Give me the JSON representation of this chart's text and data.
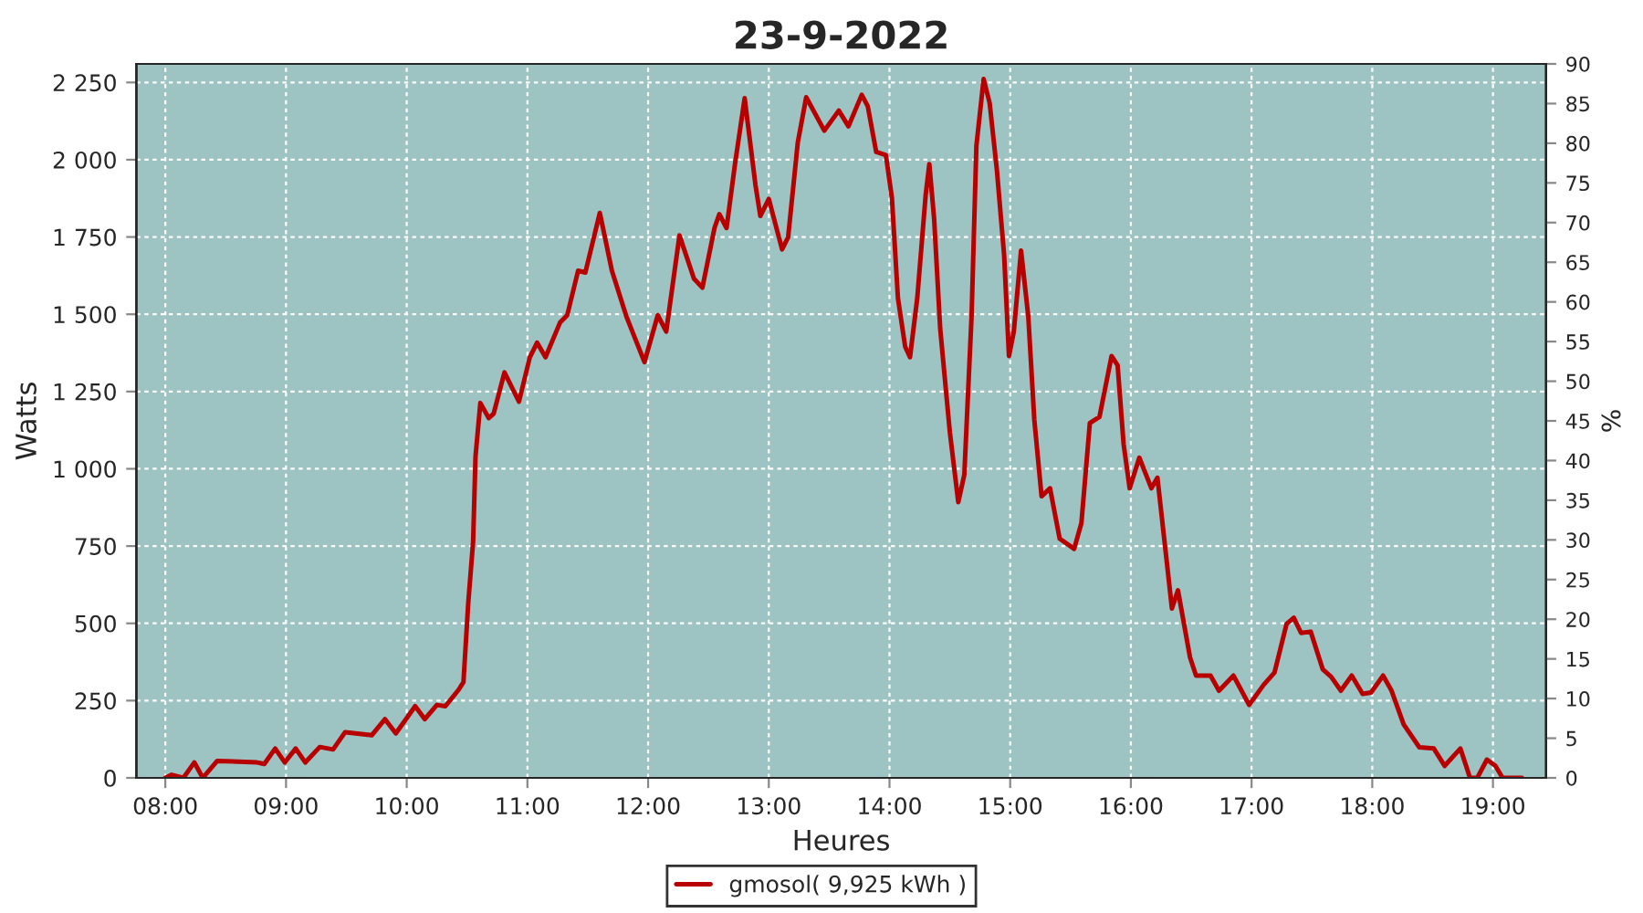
{
  "chart_data": {
    "type": "line",
    "title": "23-9-2022",
    "xlabel": "Heures",
    "ylabel": "Watts",
    "y2label": "%",
    "x": [
      8.0,
      8.05,
      8.15,
      8.24,
      8.31,
      8.43,
      8.76,
      8.82,
      8.91,
      8.99,
      9.08,
      9.16,
      9.28,
      9.39,
      9.49,
      9.71,
      9.82,
      9.91,
      10.07,
      10.15,
      10.25,
      10.32,
      10.43,
      10.47,
      10.51,
      10.55,
      10.57,
      10.61,
      10.68,
      10.72,
      10.81,
      10.93,
      11.02,
      11.08,
      11.15,
      11.27,
      11.33,
      11.42,
      11.48,
      11.6,
      11.7,
      11.82,
      11.97,
      12.08,
      12.15,
      12.26,
      12.38,
      12.45,
      12.55,
      12.59,
      12.65,
      12.72,
      12.8,
      12.89,
      12.93,
      13.0,
      13.11,
      13.16,
      13.24,
      13.31,
      13.46,
      13.58,
      13.66,
      13.77,
      13.82,
      13.89,
      13.97,
      14.02,
      14.07,
      14.13,
      14.17,
      14.23,
      14.3,
      14.33,
      14.37,
      14.42,
      14.5,
      14.57,
      14.62,
      14.68,
      14.72,
      14.78,
      14.83,
      14.89,
      14.95,
      14.99,
      15.03,
      15.09,
      15.15,
      15.2,
      15.26,
      15.33,
      15.41,
      15.53,
      15.59,
      15.66,
      15.74,
      15.84,
      15.89,
      15.94,
      15.99,
      16.07,
      16.17,
      16.22,
      16.29,
      16.34,
      16.39,
      16.49,
      16.54,
      16.66,
      16.73,
      16.85,
      16.98,
      17.1,
      17.19,
      17.29,
      17.35,
      17.41,
      17.49,
      17.59,
      17.66,
      17.74,
      17.83,
      17.92,
      17.99,
      18.09,
      18.16,
      18.26,
      18.39,
      18.51,
      18.6,
      18.73,
      18.81,
      18.87,
      18.95,
      19.02,
      19.08,
      19.24
    ],
    "series": [
      {
        "name": "gmosol( 9,925 kWh )",
        "color": "#b80000",
        "values": [
          0,
          10,
          0,
          50,
          0,
          55,
          50,
          45,
          95,
          50,
          95,
          50,
          100,
          92,
          148,
          138,
          190,
          144,
          232,
          190,
          236,
          232,
          285,
          310,
          567,
          764,
          1040,
          1213,
          1164,
          1178,
          1312,
          1217,
          1361,
          1408,
          1361,
          1473,
          1497,
          1641,
          1635,
          1828,
          1641,
          1493,
          1345,
          1497,
          1444,
          1755,
          1615,
          1586,
          1779,
          1824,
          1779,
          1986,
          2199,
          1917,
          1818,
          1873,
          1710,
          1749,
          2055,
          2202,
          2094,
          2159,
          2108,
          2210,
          2173,
          2025,
          2015,
          1877,
          1552,
          1395,
          1361,
          1552,
          1887,
          1986,
          1808,
          1454,
          1119,
          892,
          981,
          1493,
          2045,
          2261,
          2183,
          1966,
          1690,
          1365,
          1444,
          1706,
          1493,
          1158,
          911,
          937,
          774,
          741,
          824,
          1148,
          1168,
          1365,
          1335,
          1079,
          937,
          1036,
          937,
          971,
          725,
          548,
          607,
          390,
          331,
          331,
          282,
          331,
          236,
          301,
          341,
          498,
          518,
          469,
          473,
          351,
          327,
          282,
          331,
          272,
          276,
          331,
          282,
          173,
          99,
          95,
          39,
          95,
          0,
          0,
          59,
          39,
          0,
          0
        ]
      }
    ],
    "xlim": [
      7.76,
      19.44
    ],
    "xticks": [
      {
        "value": 8,
        "label": "08:00"
      },
      {
        "value": 9,
        "label": "09:00"
      },
      {
        "value": 10,
        "label": "10:00"
      },
      {
        "value": 11,
        "label": "11:00"
      },
      {
        "value": 12,
        "label": "12:00"
      },
      {
        "value": 13,
        "label": "13:00"
      },
      {
        "value": 14,
        "label": "14:00"
      },
      {
        "value": 15,
        "label": "15:00"
      },
      {
        "value": 16,
        "label": "16:00"
      },
      {
        "value": 17,
        "label": "17:00"
      },
      {
        "value": 18,
        "label": "18:00"
      },
      {
        "value": 19,
        "label": "19:00"
      }
    ],
    "ylim": [
      0,
      2310
    ],
    "yticks": [
      0,
      250,
      500,
      750,
      {
        "value": 1000,
        "label": "1 000"
      },
      {
        "value": 1250,
        "label": "1 250"
      },
      {
        "value": 1500,
        "label": "1 500"
      },
      {
        "value": 1750,
        "label": "1 750"
      },
      {
        "value": 2000,
        "label": "2 000"
      },
      {
        "value": 2250,
        "label": "2 250"
      }
    ],
    "y2lim": [
      0,
      90
    ],
    "y2ticks": [
      0,
      5,
      10,
      15,
      20,
      25,
      30,
      35,
      40,
      45,
      50,
      55,
      60,
      65,
      70,
      75,
      80,
      85,
      90
    ],
    "grid": true,
    "legend": "bottom",
    "line_style": "solid",
    "marker": "none"
  }
}
